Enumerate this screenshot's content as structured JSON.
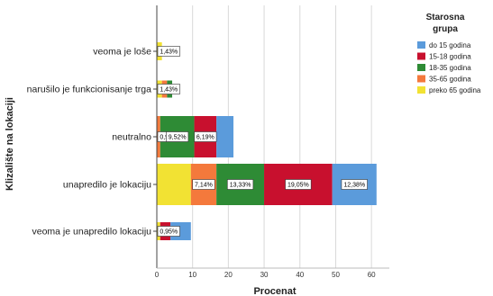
{
  "chart_data": {
    "type": "bar",
    "orientation": "horizontal",
    "stacked": true,
    "title": "",
    "xlabel": "Procenat",
    "ylabel": "Klizalište na lokaciji",
    "xlim": [
      0,
      65
    ],
    "xticks": [
      0,
      10,
      20,
      30,
      40,
      50,
      60
    ],
    "grid": true,
    "legend_position": "right",
    "legend_title": "Starosna grupa",
    "categories": [
      "veoma je loše",
      "narušilo je funkcionisanje trga",
      "neutralno",
      "unapredilo je lokaciju",
      "veoma je unapredilo lokaciju"
    ],
    "series": [
      {
        "name": "preko 65 godina",
        "color": "#f2e233",
        "values": [
          1.43,
          1.43,
          0,
          9.52,
          0.95
        ]
      },
      {
        "name": "35-65 godina",
        "color": "#f4793c",
        "values": [
          0,
          1.43,
          0.95,
          7.14,
          0
        ]
      },
      {
        "name": "18-35 godina",
        "color": "#2e8b35",
        "values": [
          0,
          1.43,
          9.52,
          13.33,
          0
        ]
      },
      {
        "name": "15-18 godina",
        "color": "#c8102e",
        "values": [
          0,
          0,
          6.19,
          19.05,
          2.86
        ]
      },
      {
        "name": "do 15 godina",
        "color": "#5b9bdb",
        "values": [
          0,
          0,
          4.76,
          12.38,
          5.71
        ]
      }
    ],
    "legend_order": [
      "do 15 godina",
      "15-18 godina",
      "18-35 godina",
      "35-65 godina",
      "preko 65 godina"
    ],
    "data_labels": [
      {
        "category": 0,
        "series": "preko 65 godina",
        "text": "1,43%"
      },
      {
        "category": 1,
        "series": "35-65 godina",
        "text": "1,43%"
      },
      {
        "category": 2,
        "series": "35-65 godina",
        "text": "0,95%"
      },
      {
        "category": 2,
        "series": "18-35 godina",
        "text": "9,52%"
      },
      {
        "category": 2,
        "series": "15-18 godina",
        "text": "6,19%"
      },
      {
        "category": 3,
        "series": "35-65 godina",
        "text": "7,14%"
      },
      {
        "category": 3,
        "series": "18-35 godina",
        "text": "13,33%"
      },
      {
        "category": 3,
        "series": "15-18 godina",
        "text": "19,05%"
      },
      {
        "category": 3,
        "series": "do 15 godina",
        "text": "12,38%"
      },
      {
        "category": 4,
        "series": "preko 65 godina",
        "text": "0,95%"
      }
    ]
  }
}
